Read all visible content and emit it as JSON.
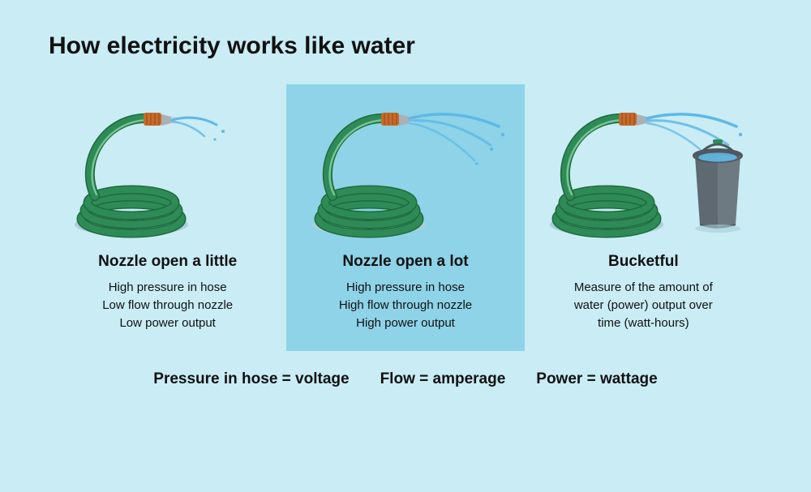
{
  "colors": {
    "background": "#c9ecf5",
    "highlight_panel": "#8ed3e8",
    "text": "#111111",
    "hose_green": "#2e8b57",
    "hose_green_dark": "#1f6b3d",
    "nozzle_metal": "#a9b0b6",
    "nozzle_grip": "#c76a2a",
    "water": "#5fb8e6",
    "bucket": "#6e7a82",
    "bucket_dark": "#4e585f",
    "shadow": "#a9cfd8"
  },
  "title": "How electricity works like water",
  "title_fontsize": 30,
  "panels": [
    {
      "id": "little",
      "highlight": false,
      "title": "Nozzle open a little",
      "lines": [
        "High pressure in hose",
        "Low flow through nozzle",
        "Low power output"
      ],
      "spray": "small",
      "bucket": false
    },
    {
      "id": "lot",
      "highlight": true,
      "title": "Nozzle open a lot",
      "lines": [
        "High pressure in hose",
        "High flow through nozzle",
        "High power output"
      ],
      "spray": "large",
      "bucket": false
    },
    {
      "id": "bucket",
      "highlight": false,
      "title": "Bucketful",
      "lines": [
        "Measure of the amount of",
        "water (power) output over",
        "time (watt-hours)"
      ],
      "spray": "large",
      "bucket": true
    }
  ],
  "legend": [
    "Pressure in hose = voltage",
    "Flow = amperage",
    "Power = wattage"
  ],
  "fontsizes": {
    "panel_title": 19,
    "panel_body": 15,
    "legend": 19
  }
}
